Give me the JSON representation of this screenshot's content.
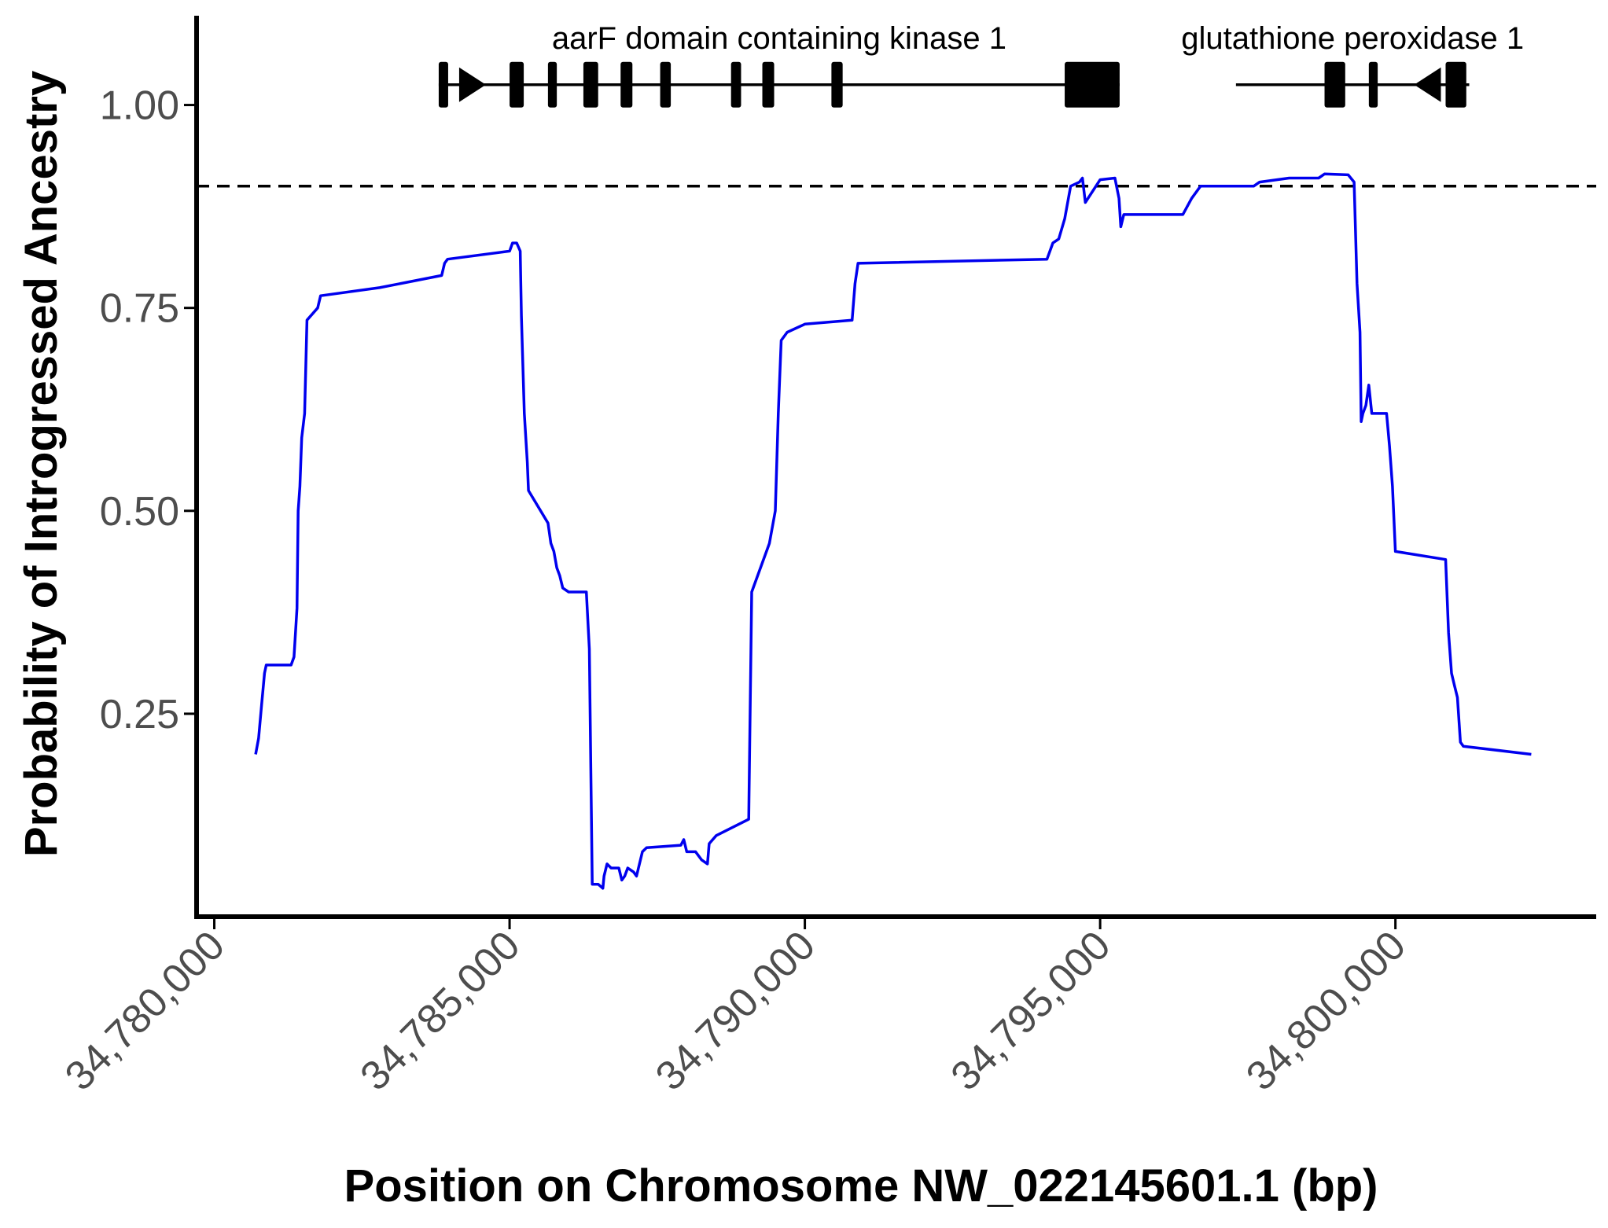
{
  "colors": {
    "line": "#0000ee",
    "axis": "#000000",
    "threshold": "#000000",
    "gene": "#000000",
    "tick_text": "#4d4d4d"
  },
  "chart_data": {
    "type": "line",
    "title": "",
    "xlabel": "Position on Chromosome NW_022145601.1 (bp)",
    "ylabel": "Probability of Introgressed Ancestry",
    "xlim": [
      34779700,
      34803400
    ],
    "ylim": [
      0,
      1.11
    ],
    "grid": false,
    "x_ticks": [
      34780000,
      34785000,
      34790000,
      34795000,
      34800000
    ],
    "x_tick_labels": [
      "34,780,000",
      "34,785,000",
      "34,790,000",
      "34,795,000",
      "34,800,000"
    ],
    "y_ticks": [
      0.25,
      0.5,
      0.75,
      1.0
    ],
    "y_tick_labels": [
      "0.25",
      "0.50",
      "0.75",
      "1.00"
    ],
    "threshold": 0.9,
    "series": [
      {
        "points": [
          [
            34780700,
            0.2
          ],
          [
            34780750,
            0.22
          ],
          [
            34780800,
            0.26
          ],
          [
            34780850,
            0.3
          ],
          [
            34780880,
            0.31
          ],
          [
            34781300,
            0.31
          ],
          [
            34781350,
            0.32
          ],
          [
            34781400,
            0.38
          ],
          [
            34781420,
            0.5
          ],
          [
            34781450,
            0.53
          ],
          [
            34781480,
            0.59
          ],
          [
            34781530,
            0.62
          ],
          [
            34781570,
            0.735
          ],
          [
            34781750,
            0.75
          ],
          [
            34781800,
            0.765
          ],
          [
            34782800,
            0.775
          ],
          [
            34783850,
            0.79
          ],
          [
            34783900,
            0.805
          ],
          [
            34783950,
            0.81
          ],
          [
            34785000,
            0.82
          ],
          [
            34785050,
            0.83
          ],
          [
            34785120,
            0.83
          ],
          [
            34785180,
            0.82
          ],
          [
            34785200,
            0.74
          ],
          [
            34785250,
            0.62
          ],
          [
            34785300,
            0.56
          ],
          [
            34785320,
            0.525
          ],
          [
            34785650,
            0.485
          ],
          [
            34785700,
            0.46
          ],
          [
            34785750,
            0.45
          ],
          [
            34785800,
            0.43
          ],
          [
            34785850,
            0.42
          ],
          [
            34785900,
            0.405
          ],
          [
            34786000,
            0.4
          ],
          [
            34786300,
            0.4
          ],
          [
            34786350,
            0.33
          ],
          [
            34786400,
            0.04
          ],
          [
            34786500,
            0.04
          ],
          [
            34786580,
            0.035
          ],
          [
            34786600,
            0.05
          ],
          [
            34786650,
            0.065
          ],
          [
            34786720,
            0.06
          ],
          [
            34786850,
            0.06
          ],
          [
            34786900,
            0.045
          ],
          [
            34786950,
            0.05
          ],
          [
            34787000,
            0.06
          ],
          [
            34787100,
            0.055
          ],
          [
            34787150,
            0.05
          ],
          [
            34787250,
            0.08
          ],
          [
            34787320,
            0.085
          ],
          [
            34787900,
            0.088
          ],
          [
            34787950,
            0.095
          ],
          [
            34788000,
            0.08
          ],
          [
            34788150,
            0.08
          ],
          [
            34788250,
            0.07
          ],
          [
            34788350,
            0.065
          ],
          [
            34788380,
            0.09
          ],
          [
            34788500,
            0.1
          ],
          [
            34789050,
            0.12
          ],
          [
            34789100,
            0.4
          ],
          [
            34789400,
            0.46
          ],
          [
            34789500,
            0.5
          ],
          [
            34789550,
            0.62
          ],
          [
            34789600,
            0.71
          ],
          [
            34789700,
            0.72
          ],
          [
            34790000,
            0.73
          ],
          [
            34790800,
            0.735
          ],
          [
            34790850,
            0.78
          ],
          [
            34790900,
            0.805
          ],
          [
            34794100,
            0.81
          ],
          [
            34794200,
            0.83
          ],
          [
            34794300,
            0.835
          ],
          [
            34794400,
            0.86
          ],
          [
            34794500,
            0.9
          ],
          [
            34794650,
            0.905
          ],
          [
            34794700,
            0.91
          ],
          [
            34794750,
            0.88
          ],
          [
            34795000,
            0.908
          ],
          [
            34795250,
            0.91
          ],
          [
            34795320,
            0.885
          ],
          [
            34795350,
            0.85
          ],
          [
            34795400,
            0.865
          ],
          [
            34796400,
            0.865
          ],
          [
            34796550,
            0.885
          ],
          [
            34796700,
            0.9
          ],
          [
            34797000,
            0.9
          ],
          [
            34797600,
            0.9
          ],
          [
            34797700,
            0.905
          ],
          [
            34798200,
            0.91
          ],
          [
            34798700,
            0.91
          ],
          [
            34798800,
            0.915
          ],
          [
            34799200,
            0.914
          ],
          [
            34799300,
            0.905
          ],
          [
            34799350,
            0.78
          ],
          [
            34799400,
            0.72
          ],
          [
            34799420,
            0.61
          ],
          [
            34799450,
            0.62
          ],
          [
            34799500,
            0.63
          ],
          [
            34799550,
            0.655
          ],
          [
            34799600,
            0.62
          ],
          [
            34799850,
            0.62
          ],
          [
            34799900,
            0.58
          ],
          [
            34799950,
            0.53
          ],
          [
            34800000,
            0.45
          ],
          [
            34800850,
            0.44
          ],
          [
            34800900,
            0.35
          ],
          [
            34800950,
            0.3
          ],
          [
            34801000,
            0.285
          ],
          [
            34801050,
            0.27
          ],
          [
            34801100,
            0.215
          ],
          [
            34801150,
            0.21
          ],
          [
            34802300,
            0.2
          ]
        ]
      }
    ],
    "genes": [
      {
        "name": "aarF domain containing kinase 1",
        "strand": "+",
        "start": 34783800,
        "end": 34795330,
        "exons": [
          [
            34783800,
            34783960
          ],
          [
            34785000,
            34785240
          ],
          [
            34785650,
            34785800
          ],
          [
            34786250,
            34786500
          ],
          [
            34786880,
            34787080
          ],
          [
            34787550,
            34787730
          ],
          [
            34788750,
            34788920
          ],
          [
            34789280,
            34789480
          ],
          [
            34790450,
            34790640
          ],
          [
            34794400,
            34795330
          ]
        ]
      },
      {
        "name": "glutathione peroxidase 1",
        "strand": "-",
        "start": 34797300,
        "end": 34801250,
        "exons": [
          [
            34798800,
            34799150
          ],
          [
            34799550,
            34799700
          ],
          [
            34800850,
            34801200
          ]
        ]
      }
    ]
  }
}
